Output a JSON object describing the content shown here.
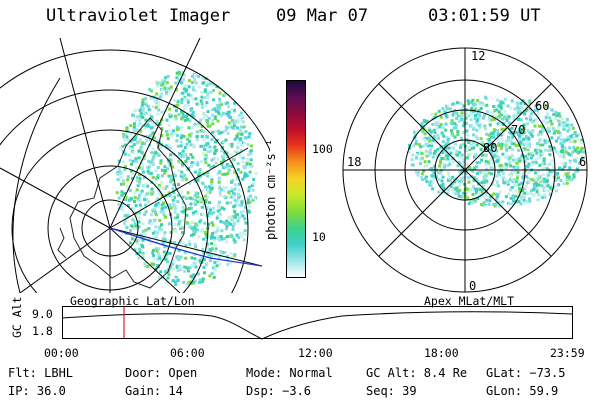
{
  "header": {
    "instrument": "Ultraviolet Imager",
    "date": "09 Mar 07",
    "time": "03:01:59 UT"
  },
  "colorbar": {
    "unit_label": "photon cm⁻²s⁻¹",
    "ticks": [
      "100",
      "10"
    ],
    "colors": [
      "#1a0a3a",
      "#5a0d55",
      "#8e0a3e",
      "#c0102a",
      "#e8361a",
      "#f7961e",
      "#f5d224",
      "#c8e82a",
      "#7ddc3a",
      "#3fd28a",
      "#3ecfc6",
      "#9ee6ea",
      "#ffffff"
    ]
  },
  "polar_plot": {
    "mlt_labels": {
      "top": "12",
      "left": "18",
      "right": "6",
      "bottom": "0"
    },
    "lat_labels": [
      "60",
      "70",
      "80"
    ]
  },
  "altitude_strip": {
    "left_title": "Geographic Lat/Lon",
    "right_title": "Apex MLat/MLT",
    "axis_label": "GC Alt",
    "ymax": "9.0",
    "ymin": "1.8",
    "time_ticks": [
      "00:00",
      "06:00",
      "12:00",
      "18:00",
      "23:59"
    ],
    "marker_color": "#e02020"
  },
  "status": {
    "flt": "Flt: LBHL",
    "door": "Door: Open",
    "mode": "Mode: Normal",
    "gc_alt": "GC Alt: 8.4 Re",
    "glat": "GLat: −73.5",
    "ip": "IP: 36.0",
    "gain": "Gain: 14",
    "dsp": "Dsp:   −3.6",
    "seq": "Seq: 39",
    "glon": "GLon:  59.9"
  }
}
